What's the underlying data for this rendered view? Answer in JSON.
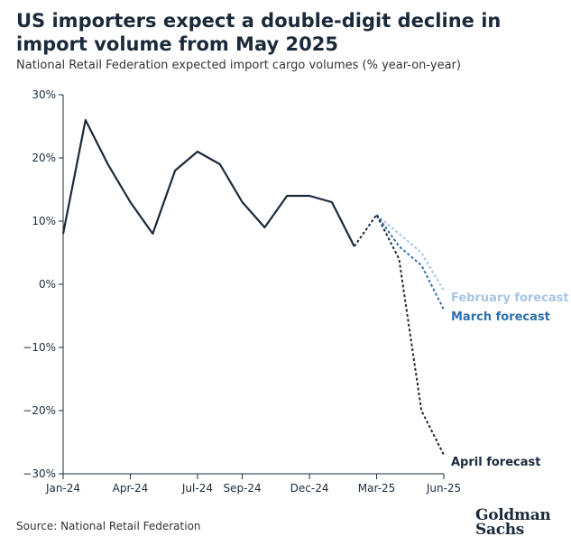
{
  "header": {
    "title": "US importers expect a double-digit decline in import volume from May 2025",
    "subtitle": "National Retail Federation expected import cargo volumes (% year-on-year)"
  },
  "footer": {
    "source": "Source: National Retail Federation",
    "logo_line1": "Goldman",
    "logo_line2": "Sachs"
  },
  "chart_data": {
    "type": "line",
    "title": "US importers expect a double-digit decline in import volume from May 2025",
    "subtitle": "National Retail Federation expected import cargo volumes (% year-on-year)",
    "xlabel": "",
    "ylabel": "",
    "ylim": [
      -30,
      30
    ],
    "yticks": [
      30,
      20,
      10,
      0,
      -10,
      -20,
      -30
    ],
    "ytick_labels": [
      "30%",
      "20%",
      "10%",
      "0%",
      "−10%",
      "−20%",
      "−30%"
    ],
    "x_periods": [
      "Jan-24",
      "Feb-24",
      "Mar-24",
      "Apr-24",
      "May-24",
      "Jun-24",
      "Jul-24",
      "Aug-24",
      "Sep-24",
      "Oct-24",
      "Nov-24",
      "Dec-24",
      "Jan-25",
      "Feb-25",
      "Mar-25",
      "Apr-25",
      "May-25",
      "Jun-25"
    ],
    "xtick_labels": [
      "Jan-24",
      "Apr-24",
      "Jul-24",
      "Sep-24",
      "Dec-24",
      "Mar-25",
      "Jun-25"
    ],
    "xtick_positions": [
      0,
      3,
      6,
      8,
      11,
      14,
      17
    ],
    "grid": false,
    "series": [
      {
        "name": "",
        "style": "solid",
        "color": "#1b2a3a",
        "points": [
          [
            0,
            8
          ],
          [
            1,
            26
          ],
          [
            2,
            19
          ],
          [
            3,
            13
          ],
          [
            4,
            8
          ],
          [
            5,
            18
          ],
          [
            6,
            21
          ],
          [
            7,
            19
          ],
          [
            8,
            13
          ],
          [
            9,
            9
          ],
          [
            10,
            14
          ],
          [
            11,
            14
          ],
          [
            12,
            13
          ],
          [
            13,
            6
          ]
        ]
      },
      {
        "name": "February forecast",
        "style": "dashed",
        "color": "#a7c6e6",
        "points": [
          [
            14,
            11
          ],
          [
            15,
            8
          ],
          [
            16,
            5
          ],
          [
            17,
            -1
          ]
        ]
      },
      {
        "name": "March forecast",
        "style": "dashed",
        "color": "#2f6fae",
        "points": [
          [
            14,
            11
          ],
          [
            15,
            6
          ],
          [
            16,
            3
          ],
          [
            17,
            -4
          ]
        ]
      },
      {
        "name": "April forecast",
        "style": "dashed",
        "color": "#1b2a3a",
        "points": [
          [
            13,
            6
          ],
          [
            14,
            11
          ],
          [
            15,
            4
          ],
          [
            16,
            -20
          ],
          [
            17,
            -27
          ]
        ]
      }
    ]
  }
}
